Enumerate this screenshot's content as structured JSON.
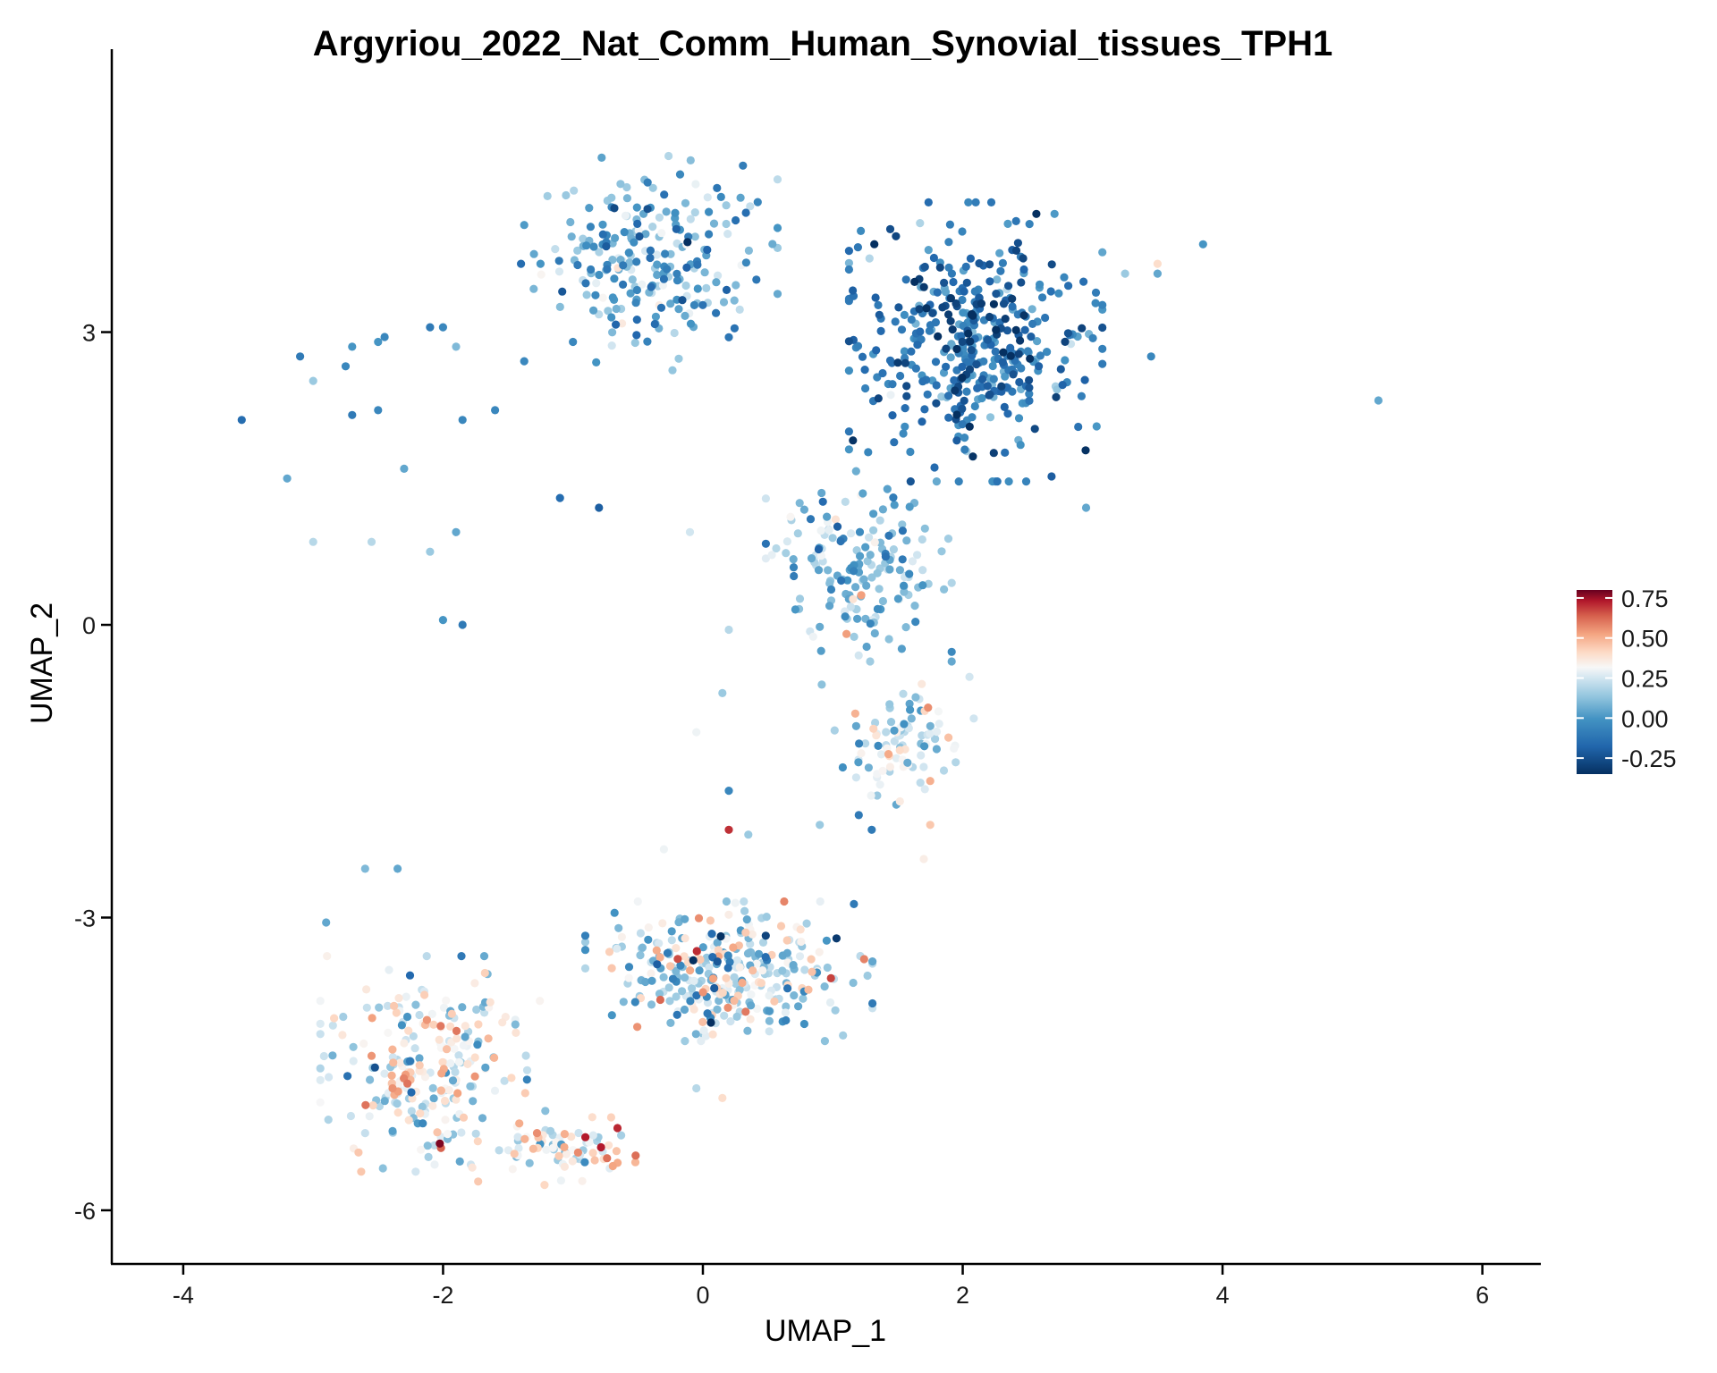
{
  "colors": {
    "low": "#053061",
    "midlow": "#4393c3",
    "mid": "#f7f7f7",
    "midhigh": "#f4a582",
    "high": "#67001f",
    "axis": "#000000"
  },
  "chart_data": {
    "type": "scatter",
    "title": "Argyriou_2022_Nat_Comm_Human_Synovial_tissues_TPH1",
    "xlabel": "UMAP_1",
    "ylabel": "UMAP_2",
    "xlim": [
      -4.55,
      6.45
    ],
    "ylim": [
      -6.55,
      5.9
    ],
    "x_ticks": [
      -4,
      -2,
      0,
      2,
      4,
      6
    ],
    "x_tick_labels": [
      "-4",
      "-2",
      "0",
      "2",
      "4",
      "6"
    ],
    "y_ticks": [
      -6,
      -3,
      0,
      3
    ],
    "y_tick_labels": [
      "-6",
      "-3",
      "0",
      "3"
    ],
    "grid": false,
    "legend": {
      "placement": "right",
      "type": "colorbar",
      "range": [
        -0.35,
        0.8
      ],
      "ticks": [
        -0.25,
        0,
        0.25,
        0.5,
        0.75
      ],
      "tick_labels": [
        "-0.25",
        "0.00",
        "0.25",
        "0.50",
        "0.75"
      ]
    },
    "clusters": [
      {
        "name": "top-left-arc",
        "center": [
          -2.8,
          2.5
        ],
        "spread": [
          0.5,
          0.9
        ],
        "n": 0,
        "value_mean": 0.0,
        "value_sd": 0.12
      },
      {
        "name": "top-blob-left",
        "center": [
          -0.4,
          3.7
        ],
        "spread": [
          0.75,
          0.85
        ],
        "n": 230,
        "value_mean": 0.05,
        "value_sd": 0.14
      },
      {
        "name": "top-blob-right",
        "center": [
          2.1,
          2.9
        ],
        "spread": [
          0.75,
          1.1
        ],
        "n": 420,
        "value_mean": -0.12,
        "value_sd": 0.13
      },
      {
        "name": "stem-upper",
        "center": [
          1.2,
          0.6
        ],
        "spread": [
          0.55,
          0.75
        ],
        "n": 170,
        "value_mean": 0.12,
        "value_sd": 0.14
      },
      {
        "name": "stem-lower",
        "center": [
          1.5,
          -1.2
        ],
        "spread": [
          0.45,
          0.55
        ],
        "n": 90,
        "value_mean": 0.2,
        "value_sd": 0.13
      },
      {
        "name": "bottom-right",
        "center": [
          0.2,
          -3.55
        ],
        "spread": [
          0.85,
          0.55
        ],
        "n": 320,
        "value_mean": 0.2,
        "value_sd": 0.2
      },
      {
        "name": "bottom-left",
        "center": [
          -2.1,
          -4.5
        ],
        "spread": [
          0.65,
          0.85
        ],
        "n": 250,
        "value_mean": 0.27,
        "value_sd": 0.17
      },
      {
        "name": "bottom-strip",
        "center": [
          -1.05,
          -5.35
        ],
        "spread": [
          0.55,
          0.3
        ],
        "n": 80,
        "value_mean": 0.33,
        "value_sd": 0.17
      }
    ],
    "points": [
      [
        -3.55,
        2.1,
        -0.15
      ],
      [
        -3.2,
        1.5,
        0.05
      ],
      [
        -3.1,
        2.75,
        -0.1
      ],
      [
        -3.0,
        2.5,
        0.15
      ],
      [
        -2.75,
        2.65,
        -0.05
      ],
      [
        -2.7,
        2.85,
        0.0
      ],
      [
        -2.7,
        2.15,
        -0.1
      ],
      [
        -2.5,
        2.9,
        0.0
      ],
      [
        -2.45,
        2.95,
        -0.05
      ],
      [
        -2.5,
        2.2,
        -0.05
      ],
      [
        -2.3,
        1.6,
        0.05
      ],
      [
        -2.1,
        3.05,
        -0.1
      ],
      [
        -2.0,
        3.05,
        -0.05
      ],
      [
        -1.9,
        2.85,
        0.1
      ],
      [
        -1.85,
        2.1,
        -0.05
      ],
      [
        -1.6,
        2.2,
        -0.05
      ],
      [
        -3.0,
        0.85,
        0.2
      ],
      [
        -2.55,
        0.85,
        0.2
      ],
      [
        -2.1,
        0.75,
        0.15
      ],
      [
        -1.9,
        0.95,
        0.05
      ],
      [
        -2.0,
        0.05,
        0.0
      ],
      [
        -1.85,
        0.0,
        -0.1
      ],
      [
        -1.1,
        1.3,
        -0.15
      ],
      [
        -0.8,
        1.2,
        -0.2
      ],
      [
        -1.0,
        2.9,
        -0.05
      ],
      [
        -1.4,
        3.7,
        -0.15
      ],
      [
        -1.25,
        3.7,
        0.0
      ],
      [
        -1.3,
        3.8,
        0.05
      ],
      [
        3.5,
        3.6,
        0.05
      ],
      [
        3.85,
        3.9,
        0.0
      ],
      [
        5.2,
        2.3,
        0.05
      ],
      [
        3.45,
        2.75,
        -0.05
      ],
      [
        3.5,
        3.7,
        0.4
      ],
      [
        2.95,
        1.2,
        0.05
      ],
      [
        3.25,
        3.6,
        0.15
      ],
      [
        -0.1,
        0.95,
        0.25
      ],
      [
        0.2,
        -0.05,
        0.2
      ],
      [
        0.15,
        -0.7,
        0.15
      ],
      [
        0.25,
        -2.85,
        0.3
      ],
      [
        0.2,
        -1.7,
        -0.05
      ],
      [
        0.35,
        -2.15,
        0.15
      ],
      [
        0.9,
        -2.05,
        0.15
      ],
      [
        1.2,
        -1.95,
        -0.1
      ],
      [
        1.7,
        -2.4,
        0.35
      ],
      [
        1.75,
        -2.05,
        0.45
      ],
      [
        1.75,
        -1.6,
        0.5
      ],
      [
        0.2,
        -2.1,
        0.7
      ],
      [
        -0.05,
        -1.1,
        0.3
      ],
      [
        -0.7,
        -4.0,
        0.0
      ],
      [
        -0.05,
        -4.75,
        0.2
      ],
      [
        0.15,
        -4.85,
        0.4
      ],
      [
        1.3,
        -2.1,
        -0.1
      ],
      [
        -0.3,
        -2.3,
        0.3
      ],
      [
        -2.9,
        -3.05,
        0.05
      ],
      [
        -2.6,
        -2.5,
        0.1
      ],
      [
        -2.35,
        -2.5,
        0.05
      ]
    ],
    "seed": 20220
  }
}
